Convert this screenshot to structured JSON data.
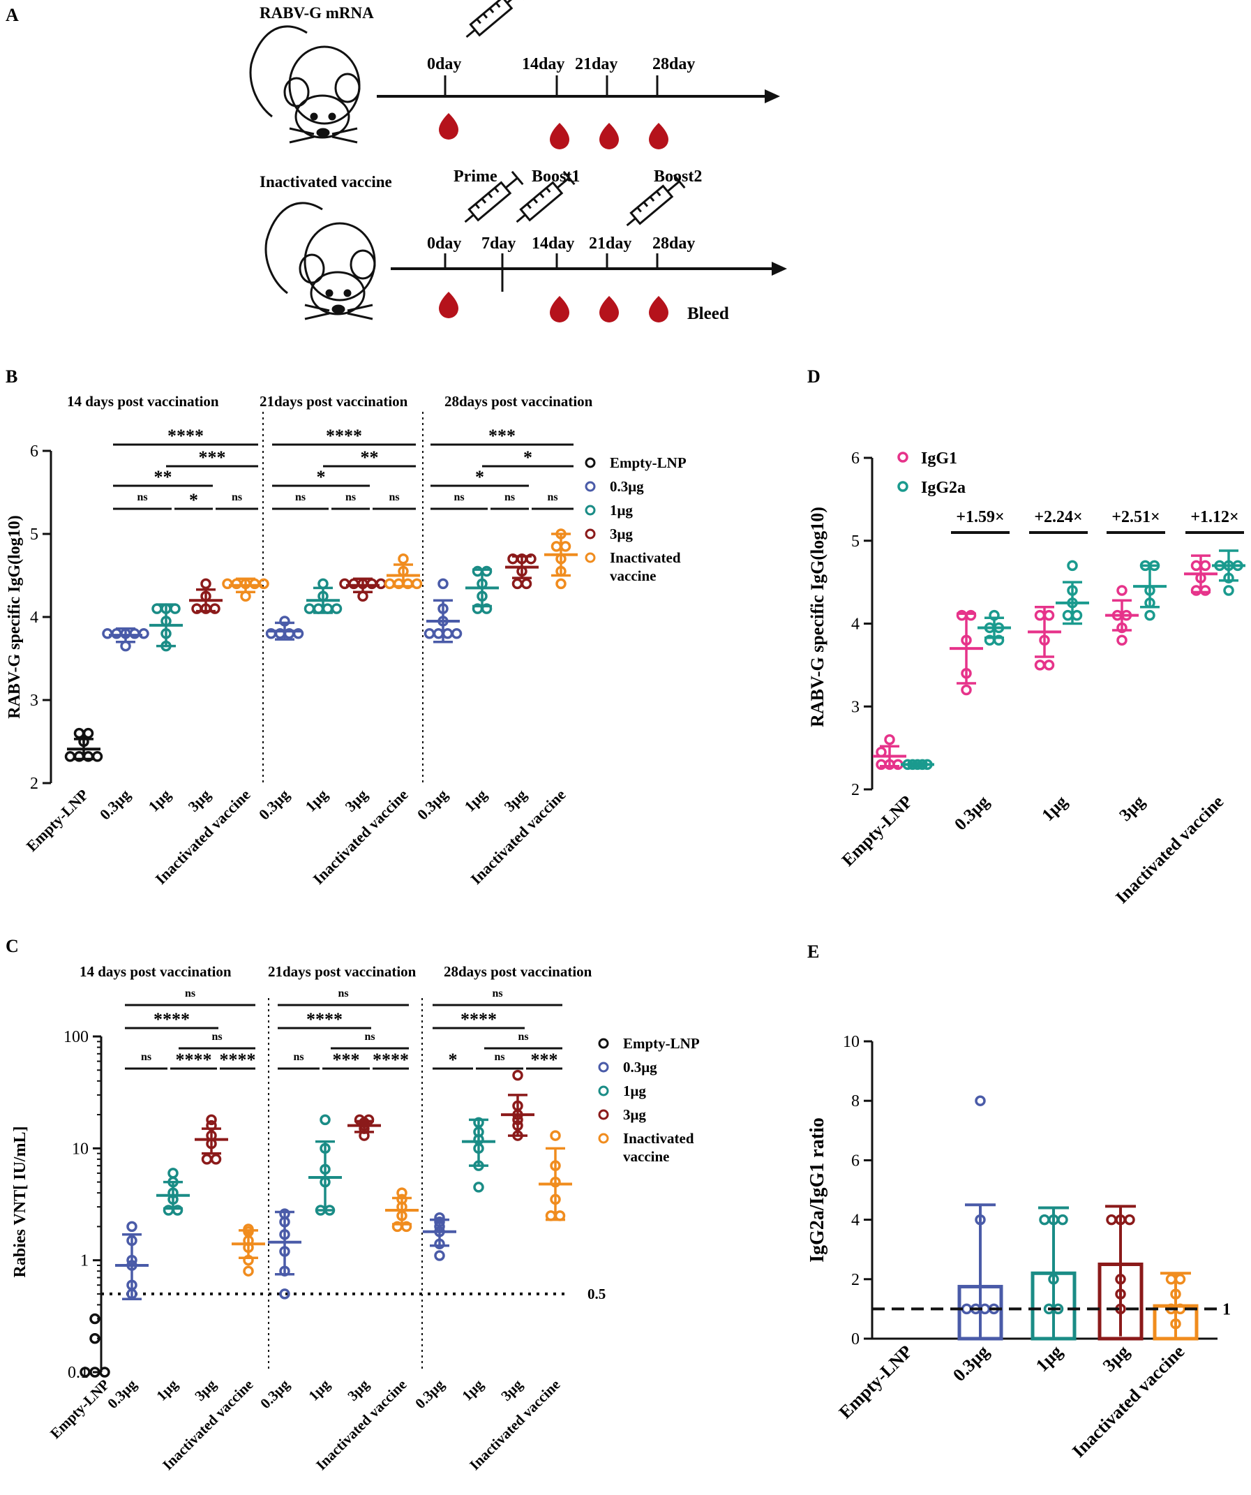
{
  "colors": {
    "empty": "#111111",
    "dose03": "#4a5ba8",
    "dose1": "#1a8c86",
    "dose3": "#8b1a1a",
    "inactivated": "#f08c1e",
    "igg1": "#e6338a",
    "igg2a": "#1a9a8e",
    "blood": "#b5121b"
  },
  "panel_a": {
    "letter": "A",
    "mrna_title": "RABV-G mRNA",
    "mrna_days": [
      "0day",
      "14day",
      "21day",
      "28day"
    ],
    "vaccine_title": "Inactivated vaccine",
    "vaccine_days": [
      "0day",
      "7day",
      "14day",
      "21day",
      "28day"
    ],
    "prime": "Prime",
    "boost1": "Boost1",
    "boost2": "Boost2",
    "bleed": "Bleed",
    "icons": [
      "mouse-icon",
      "syringe-icon",
      "blood-drop-icon"
    ]
  },
  "chart_data": [
    {
      "id": "B",
      "type": "scatter",
      "letter": "B",
      "title": "",
      "ylabel": "RABV-G specific IgG(log10)",
      "ylim": [
        2,
        6
      ],
      "yticks": [
        2,
        3,
        4,
        5,
        6
      ],
      "section_titles": [
        "14 days post vaccination",
        "21days post vaccination",
        "28days post vaccination"
      ],
      "categories": [
        "Empty-LNP",
        "0.3μg",
        "1μg",
        "3μg",
        "Inactivated vaccine",
        "0.3μg",
        "1μg",
        "3μg",
        "Inactivated vaccine",
        "0.3μg",
        "1μg",
        "3μg",
        "Inactivated vaccine"
      ],
      "legend": [
        "Empty-LNP",
        "0.3μg",
        "1μg",
        "3μg",
        "Inactivated\nvaccine"
      ],
      "groups": [
        {
          "name": "Empty-LNP",
          "color": "empty",
          "points": [
            2.32,
            2.32,
            2.32,
            2.32,
            2.5,
            2.6,
            2.6
          ],
          "mean": 2.41,
          "sd": 0.12
        },
        {
          "name": "0.3μg d14",
          "color": "dose03",
          "points": [
            3.8,
            3.8,
            3.8,
            3.8,
            3.8,
            3.65
          ],
          "mean": 3.78,
          "sd": 0.08
        },
        {
          "name": "1μg d14",
          "color": "dose1",
          "points": [
            4.1,
            4.1,
            3.95,
            3.8,
            3.65,
            4.1
          ],
          "mean": 3.9,
          "sd": 0.25
        },
        {
          "name": "3μg d14",
          "color": "dose3",
          "points": [
            4.1,
            4.1,
            4.1,
            4.25,
            4.4
          ],
          "mean": 4.2,
          "sd": 0.13
        },
        {
          "name": "Inactivated vaccine d14",
          "color": "inactivated",
          "points": [
            4.4,
            4.4,
            4.4,
            4.4,
            4.25,
            4.4
          ],
          "mean": 4.38,
          "sd": 0.08
        },
        {
          "name": "0.3μg d21",
          "color": "dose03",
          "points": [
            3.8,
            3.8,
            3.8,
            3.8,
            3.95
          ],
          "mean": 3.83,
          "sd": 0.1
        },
        {
          "name": "1μg d21",
          "color": "dose1",
          "points": [
            4.1,
            4.1,
            4.1,
            4.1,
            4.25,
            4.4
          ],
          "mean": 4.2,
          "sd": 0.15
        },
        {
          "name": "3μg d21",
          "color": "dose3",
          "points": [
            4.4,
            4.4,
            4.4,
            4.4,
            4.25,
            4.4
          ],
          "mean": 4.38,
          "sd": 0.08
        },
        {
          "name": "Inactivated vaccine d21",
          "color": "inactivated",
          "points": [
            4.4,
            4.4,
            4.4,
            4.4,
            4.55,
            4.7
          ],
          "mean": 4.5,
          "sd": 0.13
        },
        {
          "name": "0.3μg d28",
          "color": "dose03",
          "points": [
            3.8,
            3.8,
            3.8,
            3.8,
            3.95,
            4.1,
            4.4
          ],
          "mean": 3.95,
          "sd": 0.25
        },
        {
          "name": "1μg d28",
          "color": "dose1",
          "points": [
            4.1,
            4.1,
            4.25,
            4.4,
            4.55,
            4.55
          ],
          "mean": 4.35,
          "sd": 0.22
        },
        {
          "name": "3μg d28",
          "color": "dose3",
          "points": [
            4.4,
            4.4,
            4.55,
            4.7,
            4.7,
            4.7
          ],
          "mean": 4.6,
          "sd": 0.13
        },
        {
          "name": "Inactivated vaccine d28",
          "color": "inactivated",
          "points": [
            4.4,
            4.55,
            4.7,
            4.85,
            4.85,
            5.0
          ],
          "mean": 4.75,
          "sd": 0.25
        }
      ],
      "sig_rows": [
        [
          "****",
          "****",
          "***"
        ],
        [
          "***",
          "**",
          "*"
        ],
        [
          "**",
          "*",
          "*"
        ],
        [
          "ns",
          "*",
          "ns",
          "ns",
          "ns",
          "ns",
          "ns",
          "ns",
          "ns"
        ]
      ]
    },
    {
      "id": "C",
      "type": "scatter",
      "letter": "C",
      "title": "",
      "ylabel": "Rabies VNT[ IU/mL]",
      "yscale": "log",
      "ylim": [
        0.1,
        100
      ],
      "yticks": [
        0.1,
        1,
        10,
        100
      ],
      "ytick_labels": [
        "0.1",
        "1",
        "10",
        "100"
      ],
      "threshold": 0.5,
      "threshold_label": "0.5",
      "section_titles": [
        "14 days post vaccination",
        "21days post vaccination",
        "28days post vaccination"
      ],
      "categories": [
        "Empty-LNP",
        "0.3μg",
        "1μg",
        "3μg",
        "Inactivated vaccine",
        "0.3μg",
        "1μg",
        "3μg",
        "Inactivated vaccine",
        "0.3μg",
        "1μg",
        "3μg",
        "Inactivated vaccine"
      ],
      "legend": [
        "Empty-LNP",
        "0.3μg",
        "1μg",
        "3μg",
        "Inactivated\nvaccine"
      ],
      "groups": [
        {
          "name": "Empty-LNP",
          "color": "empty",
          "points": [
            0.1,
            0.1,
            0.1,
            0.2,
            0.3
          ],
          "mean": null,
          "sd": null
        },
        {
          "name": "0.3μg d14",
          "color": "dose03",
          "points": [
            0.5,
            0.6,
            0.9,
            1.0,
            1.5,
            2.0
          ],
          "mean": 0.9,
          "sd_low": 0.45,
          "sd_high": 1.7
        },
        {
          "name": "1μg d14",
          "color": "dose1",
          "points": [
            2.8,
            2.8,
            3.5,
            4.0,
            5.0,
            6.0
          ],
          "mean": 3.8,
          "sd_low": 2.9,
          "sd_high": 5.0
        },
        {
          "name": "3μg d14",
          "color": "dose3",
          "points": [
            8.0,
            8.0,
            11.0,
            13.0,
            16.0,
            18.0
          ],
          "mean": 12.0,
          "sd_low": 9.0,
          "sd_high": 15.0
        },
        {
          "name": "Inactivated vaccine d14",
          "color": "inactivated",
          "points": [
            0.8,
            1.0,
            1.3,
            1.5,
            1.8,
            1.9
          ],
          "mean": 1.4,
          "sd_low": 1.05,
          "sd_high": 1.85
        },
        {
          "name": "0.3μg d21",
          "color": "dose03",
          "points": [
            0.5,
            0.8,
            1.2,
            1.7,
            2.2,
            2.6
          ],
          "mean": 1.45,
          "sd_low": 0.75,
          "sd_high": 2.7
        },
        {
          "name": "1μg d21",
          "color": "dose1",
          "points": [
            2.8,
            2.8,
            5.0,
            6.5,
            10.0,
            18.0
          ],
          "mean": 5.5,
          "sd_low": 2.8,
          "sd_high": 11.5
        },
        {
          "name": "3μg d21",
          "color": "dose3",
          "points": [
            13.0,
            15.0,
            16.0,
            17.0,
            18.0,
            18.0
          ],
          "mean": 16.0,
          "sd_low": 14.0,
          "sd_high": 17.5
        },
        {
          "name": "Inactivated vaccine d21",
          "color": "inactivated",
          "points": [
            2.0,
            2.0,
            2.5,
            3.0,
            3.5,
            4.0
          ],
          "mean": 2.8,
          "sd_low": 2.1,
          "sd_high": 3.6
        },
        {
          "name": "0.3μg d28",
          "color": "dose03",
          "points": [
            1.1,
            1.4,
            1.8,
            2.0,
            2.2,
            2.4
          ],
          "mean": 1.8,
          "sd_low": 1.35,
          "sd_high": 2.3
        },
        {
          "name": "1μg d28",
          "color": "dose1",
          "points": [
            4.5,
            7.0,
            10.0,
            12.0,
            14.0,
            17.0
          ],
          "mean": 11.5,
          "sd_low": 7.0,
          "sd_high": 18.0
        },
        {
          "name": "3μg d28",
          "color": "dose3",
          "points": [
            13.0,
            16.0,
            18.0,
            20.0,
            24.0,
            45.0
          ],
          "mean": 20.0,
          "sd_low": 13.0,
          "sd_high": 30.0
        },
        {
          "name": "Inactivated vaccine d28",
          "color": "inactivated",
          "points": [
            2.5,
            2.5,
            3.5,
            5.0,
            7.0,
            13.0
          ],
          "mean": 4.8,
          "sd_low": 2.3,
          "sd_high": 10.0
        }
      ],
      "sig_rows": [
        [
          "ns",
          "ns",
          "ns"
        ],
        [
          "****",
          "****",
          "****"
        ],
        [
          "ns",
          "ns",
          "ns"
        ],
        [
          "ns",
          "****",
          "****",
          "ns",
          "***",
          "****",
          "*",
          "ns",
          "***"
        ]
      ]
    },
    {
      "id": "D",
      "type": "scatter",
      "letter": "D",
      "title": "",
      "ylabel": "RABV-G specific IgG(log10)",
      "ylim": [
        2,
        6
      ],
      "yticks": [
        2,
        3,
        4,
        5,
        6
      ],
      "categories": [
        "Empty-LNP",
        "0.3μg",
        "1μg",
        "3μg",
        "Inactivated vaccine"
      ],
      "series": [
        {
          "name": "IgG1",
          "color": "igg1",
          "groups": [
            {
              "points": [
                2.3,
                2.3,
                2.3,
                2.45,
                2.6
              ],
              "mean": 2.4,
              "sd": 0.12
            },
            {
              "points": [
                3.2,
                3.4,
                3.8,
                4.1,
                4.1
              ],
              "mean": 3.7,
              "sd": 0.42
            },
            {
              "points": [
                3.5,
                3.5,
                3.8,
                4.1,
                4.1
              ],
              "mean": 3.9,
              "sd": 0.3
            },
            {
              "points": [
                3.8,
                3.95,
                4.1,
                4.1,
                4.4
              ],
              "mean": 4.1,
              "sd": 0.18
            },
            {
              "points": [
                4.4,
                4.4,
                4.55,
                4.7,
                4.7
              ],
              "mean": 4.6,
              "sd": 0.22
            }
          ]
        },
        {
          "name": "IgG2a",
          "color": "igg2a",
          "groups": [
            {
              "points": [
                2.3,
                2.3,
                2.3,
                2.3,
                2.3
              ],
              "mean": 2.3,
              "sd": 0.02
            },
            {
              "points": [
                3.8,
                3.8,
                3.95,
                3.95,
                4.1
              ],
              "mean": 3.95,
              "sd": 0.12
            },
            {
              "points": [
                4.1,
                4.1,
                4.25,
                4.4,
                4.7
              ],
              "mean": 4.25,
              "sd": 0.25
            },
            {
              "points": [
                4.1,
                4.25,
                4.4,
                4.7,
                4.7
              ],
              "mean": 4.45,
              "sd": 0.25
            },
            {
              "points": [
                4.4,
                4.55,
                4.7,
                4.7,
                4.7
              ],
              "mean": 4.7,
              "sd": 0.18
            }
          ]
        }
      ],
      "fold_labels": [
        "+1.59×",
        "+2.24×",
        "+2.51×",
        "+1.12×"
      ]
    },
    {
      "id": "E",
      "type": "bar",
      "letter": "E",
      "title": "",
      "ylabel": "IgG2a/IgG1 ratio",
      "ylim": [
        0,
        10
      ],
      "yticks": [
        0,
        2,
        4,
        6,
        8,
        10
      ],
      "threshold": 1,
      "threshold_label": "1",
      "categories": [
        "Empty-LNP",
        "0.3μg",
        "1μg",
        "3μg",
        "Inactivated vaccine"
      ],
      "values": [
        null,
        1.75,
        2.2,
        2.5,
        1.1
      ],
      "sd": [
        null,
        2.75,
        2.2,
        1.95,
        1.1
      ],
      "colors": [
        "empty",
        "dose03",
        "dose1",
        "dose3",
        "inactivated"
      ],
      "points": [
        [],
        [
          1.0,
          1.0,
          1.0,
          1.0,
          4.0,
          8.0
        ],
        [
          1.0,
          1.0,
          2.0,
          4.0,
          4.0,
          4.0
        ],
        [
          1.0,
          1.5,
          2.0,
          4.0,
          4.0,
          4.0
        ],
        [
          0.5,
          1.0,
          1.0,
          1.5,
          2.0,
          2.0
        ]
      ]
    }
  ]
}
